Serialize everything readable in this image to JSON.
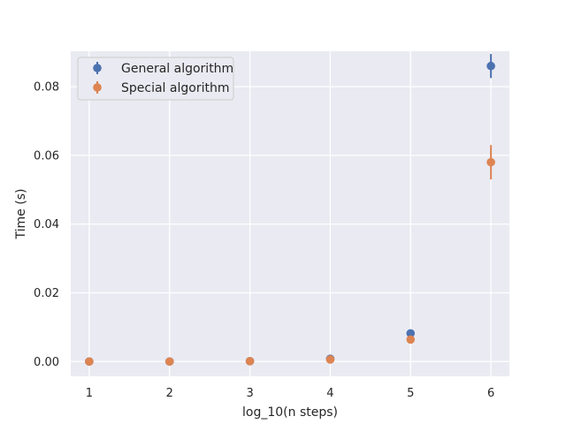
{
  "chart_data": {
    "type": "scatter",
    "title": "",
    "xlabel": "log_10(n steps)",
    "ylabel": "Time (s)",
    "xlim": [
      0.77,
      6.23
    ],
    "ylim": [
      -0.0043,
      0.0903
    ],
    "xticks": [
      1,
      2,
      3,
      4,
      5,
      6
    ],
    "xtick_labels": [
      "1",
      "2",
      "3",
      "4",
      "5",
      "6"
    ],
    "yticks": [
      0.0,
      0.02,
      0.04,
      0.06,
      0.08
    ],
    "ytick_labels": [
      "0.00",
      "0.02",
      "0.04",
      "0.06",
      "0.08"
    ],
    "grid": true,
    "legend_position": "top-left",
    "background": "#eaeaf2",
    "series": [
      {
        "name": "General algorithm",
        "color": "#4c72b0",
        "x": [
          1,
          2,
          3,
          4,
          5,
          6
        ],
        "y": [
          0.0,
          0.0,
          0.0001,
          0.0008,
          0.0082,
          0.086
        ],
        "err": [
          0.0,
          0.0,
          0.0,
          0.0001,
          0.0005,
          0.0035
        ]
      },
      {
        "name": "Special algorithm",
        "color": "#dd8452",
        "x": [
          1,
          2,
          3,
          4,
          5,
          6
        ],
        "y": [
          0.0,
          0.0,
          0.0001,
          0.0006,
          0.0064,
          0.058
        ],
        "err": [
          0.0,
          0.0,
          0.0,
          0.0001,
          0.0008,
          0.005
        ]
      }
    ]
  }
}
